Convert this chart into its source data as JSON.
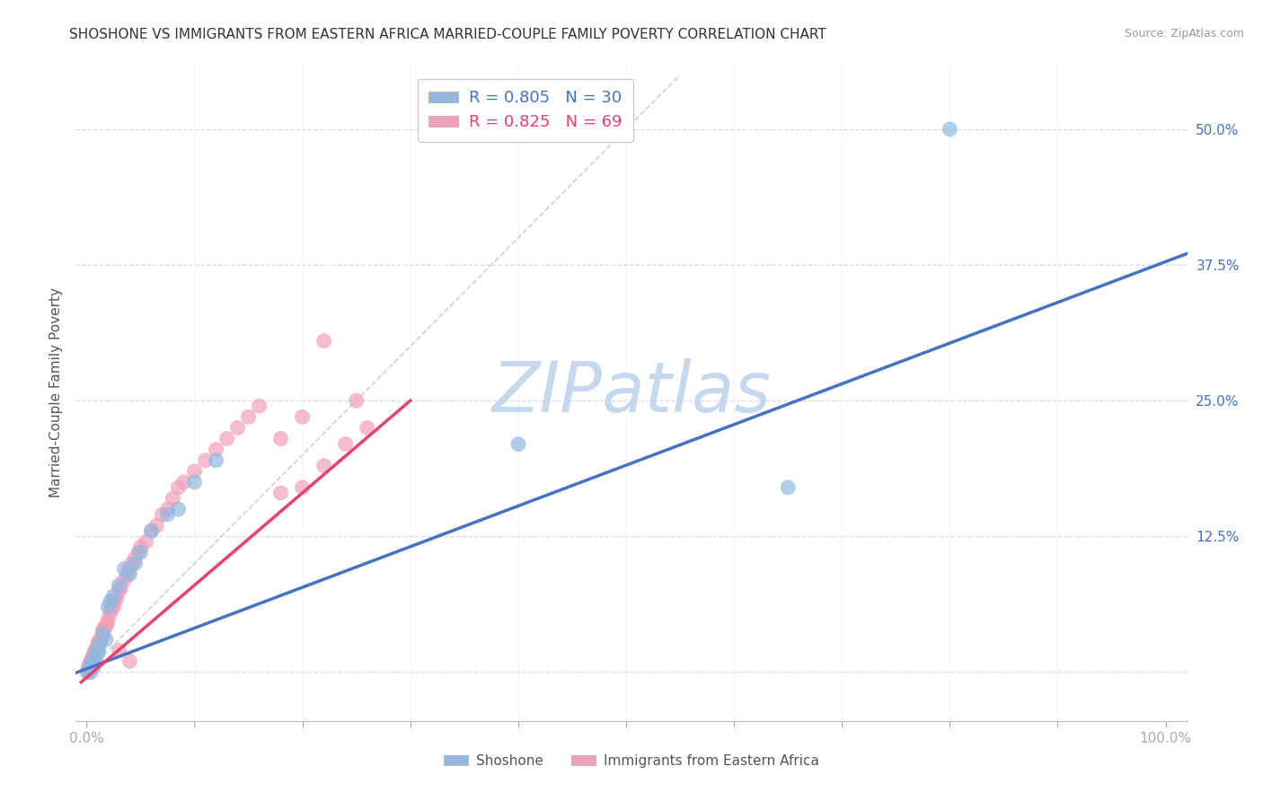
{
  "title": "SHOSHONE VS IMMIGRANTS FROM EASTERN AFRICA MARRIED-COUPLE FAMILY POVERTY CORRELATION CHART",
  "source": "Source: ZipAtlas.com",
  "ylabel": "Married-Couple Family Poverty",
  "ytick_values": [
    0.0,
    0.125,
    0.25,
    0.375,
    0.5
  ],
  "ytick_labels": [
    "",
    "12.5%",
    "25.0%",
    "37.5%",
    "50.0%"
  ],
  "xlim": [
    -0.01,
    1.02
  ],
  "ylim": [
    -0.045,
    0.56
  ],
  "legend1_r": "0.805",
  "legend1_n": "30",
  "legend2_r": "0.825",
  "legend2_n": "69",
  "shoshone_color": "#92b8e0",
  "eastern_africa_color": "#f0a0b8",
  "shoshone_line_color": "#4472c4",
  "eastern_africa_line_color": "#e84070",
  "shoshone_line_slope": 0.375,
  "shoshone_line_intercept": 0.003,
  "eastern_africa_line_slope": 0.85,
  "eastern_africa_line_intercept": -0.005,
  "shoshone_line_x_start": -0.01,
  "shoshone_line_x_end": 1.02,
  "eastern_africa_line_x_start": -0.005,
  "eastern_africa_line_x_end": 0.3,
  "diagonal_color": "#c8c8c8",
  "watermark_text": "ZIPatlas",
  "watermark_color": "#c5d8ed",
  "axis_label_color": "#4472c4",
  "grid_color": "#dddddd",
  "title_color": "#333333",
  "source_color": "#999999",
  "shoshone_points_x": [
    0.001,
    0.002,
    0.003,
    0.004,
    0.005,
    0.006,
    0.007,
    0.008,
    0.009,
    0.01,
    0.011,
    0.012,
    0.015,
    0.018,
    0.02,
    0.022,
    0.025,
    0.03,
    0.035,
    0.04,
    0.045,
    0.05,
    0.06,
    0.075,
    0.085,
    0.1,
    0.12,
    0.4,
    0.65,
    0.8
  ],
  "shoshone_points_y": [
    0.0,
    0.0,
    0.005,
    0.0,
    0.01,
    0.008,
    0.005,
    0.015,
    0.01,
    0.02,
    0.018,
    0.025,
    0.035,
    0.03,
    0.06,
    0.065,
    0.07,
    0.08,
    0.095,
    0.09,
    0.1,
    0.11,
    0.13,
    0.145,
    0.15,
    0.175,
    0.195,
    0.21,
    0.17,
    0.5
  ],
  "eastern_africa_points_x": [
    0.001,
    0.001,
    0.002,
    0.002,
    0.003,
    0.003,
    0.004,
    0.004,
    0.005,
    0.005,
    0.006,
    0.006,
    0.007,
    0.007,
    0.008,
    0.008,
    0.009,
    0.01,
    0.01,
    0.011,
    0.012,
    0.013,
    0.014,
    0.015,
    0.015,
    0.016,
    0.018,
    0.019,
    0.02,
    0.022,
    0.023,
    0.025,
    0.026,
    0.028,
    0.03,
    0.032,
    0.035,
    0.038,
    0.04,
    0.042,
    0.045,
    0.048,
    0.05,
    0.055,
    0.06,
    0.065,
    0.07,
    0.075,
    0.08,
    0.085,
    0.09,
    0.1,
    0.11,
    0.12,
    0.13,
    0.14,
    0.15,
    0.16,
    0.18,
    0.2,
    0.22,
    0.24,
    0.26,
    0.22,
    0.25,
    0.2,
    0.18,
    0.03,
    0.04
  ],
  "eastern_africa_points_y": [
    0.0,
    0.002,
    0.003,
    0.005,
    0.005,
    0.008,
    0.008,
    0.01,
    0.01,
    0.012,
    0.012,
    0.015,
    0.015,
    0.018,
    0.018,
    0.02,
    0.02,
    0.022,
    0.025,
    0.028,
    0.028,
    0.03,
    0.032,
    0.035,
    0.038,
    0.04,
    0.042,
    0.045,
    0.048,
    0.055,
    0.058,
    0.06,
    0.065,
    0.068,
    0.075,
    0.078,
    0.085,
    0.09,
    0.095,
    0.1,
    0.105,
    0.11,
    0.115,
    0.12,
    0.13,
    0.135,
    0.145,
    0.15,
    0.16,
    0.17,
    0.175,
    0.185,
    0.195,
    0.205,
    0.215,
    0.225,
    0.235,
    0.245,
    0.165,
    0.17,
    0.19,
    0.21,
    0.225,
    0.305,
    0.25,
    0.235,
    0.215,
    0.02,
    0.01
  ]
}
